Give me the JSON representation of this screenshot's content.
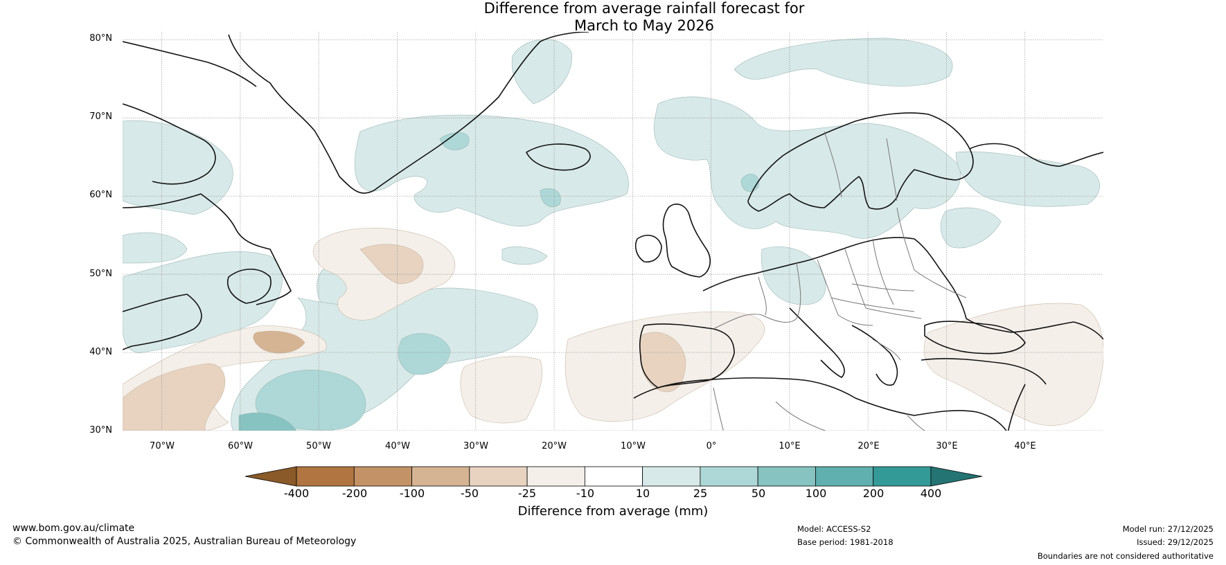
{
  "title": {
    "line1": "Difference from average rainfall forecast for",
    "line2": "March to May 2026"
  },
  "map": {
    "lat_labels": [
      "80°N",
      "70°N",
      "60°N",
      "50°N",
      "40°N",
      "30°N"
    ],
    "lon_labels": [
      "70°W",
      "60°W",
      "50°W",
      "40°W",
      "30°W",
      "20°W",
      "10°W",
      "0°",
      "10°E",
      "20°E",
      "30°E",
      "40°E"
    ],
    "extent": {
      "lon": [
        -75,
        50
      ],
      "lat": [
        30,
        81
      ]
    }
  },
  "colorbar": {
    "ticks": [
      "-400",
      "-200",
      "-100",
      "-50",
      "-25",
      "-10",
      "10",
      "25",
      "50",
      "100",
      "200",
      "400"
    ],
    "colors": [
      "#8a5a28",
      "#b07540",
      "#c39266",
      "#d5b494",
      "#e7d3c0",
      "#f4efe9",
      "#ffffff",
      "#d7e9e8",
      "#add8d7",
      "#86c3c1",
      "#5fb0ae",
      "#349a98",
      "#247473"
    ],
    "label": "Difference from average (mm)"
  },
  "footer": {
    "website": "www.bom.gov.au/climate",
    "copyright": "© Commonwealth of Australia 2025, Australian Bureau of Meteorology",
    "model": "Model: ACCESS-S2",
    "base_period": "Base period: 1981-2018",
    "model_run": "Model run: 27/12/2025",
    "issued": "Issued: 29/12/2025",
    "disclaimer": "Boundaries are not considered authoritative"
  }
}
